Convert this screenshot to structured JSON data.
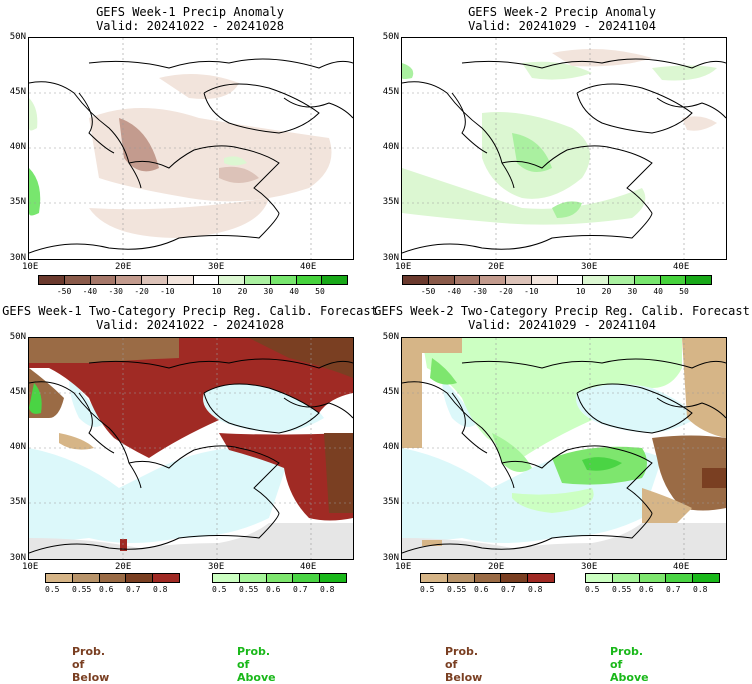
{
  "panels": {
    "p1": {
      "title1": "GEFS Week-1 Precip Anomaly",
      "title2": "Valid: 20241022 - 20241028"
    },
    "p2": {
      "title1": "GEFS Week-2 Precip Anomaly",
      "title2": "Valid: 20241029 - 20241104"
    },
    "p3": {
      "title1": "GEFS Week-1 Two-Category Precip Reg. Calib. Forecast",
      "title2": "Valid: 20241022 - 20241028"
    },
    "p4": {
      "title1": "GEFS Week-2 Two-Category Precip Reg. Calib. Forecast",
      "title2": "Valid: 20241029 - 20241104"
    }
  },
  "axes": {
    "lat_labels": [
      "50N",
      "45N",
      "40N",
      "35N",
      "30N"
    ],
    "lon_labels": [
      "10E",
      "20E",
      "30E",
      "40E"
    ]
  },
  "anomaly_colorbar": {
    "labels": [
      "-50",
      "-40",
      "-30",
      "-20",
      "-10",
      "10",
      "20",
      "30",
      "40",
      "50"
    ],
    "colors": [
      "#6b3a2e",
      "#8a5a4a",
      "#a6786a",
      "#c39b8e",
      "#dcc2b8",
      "#f2e4dc",
      "#ffffff",
      "#dcf7d2",
      "#aaf0a0",
      "#78e66e",
      "#46d23c",
      "#18a818"
    ]
  },
  "prob_colorbar": {
    "labels": [
      "0.5",
      "0.55",
      "0.6",
      "0.7",
      "0.8"
    ],
    "below_colors": [
      "#d6b587",
      "#b8946a",
      "#9a6b45",
      "#7a3f22",
      "#a02a24"
    ],
    "above_colors": [
      "#ccffc2",
      "#a6f59a",
      "#7ee66e",
      "#4ad444",
      "#1ab81a"
    ]
  },
  "legend": {
    "below_label": "Prob. of Below",
    "above_label": "Prob. of Above",
    "below_color": "#7a3f22",
    "above_color": "#1ab81a"
  }
}
